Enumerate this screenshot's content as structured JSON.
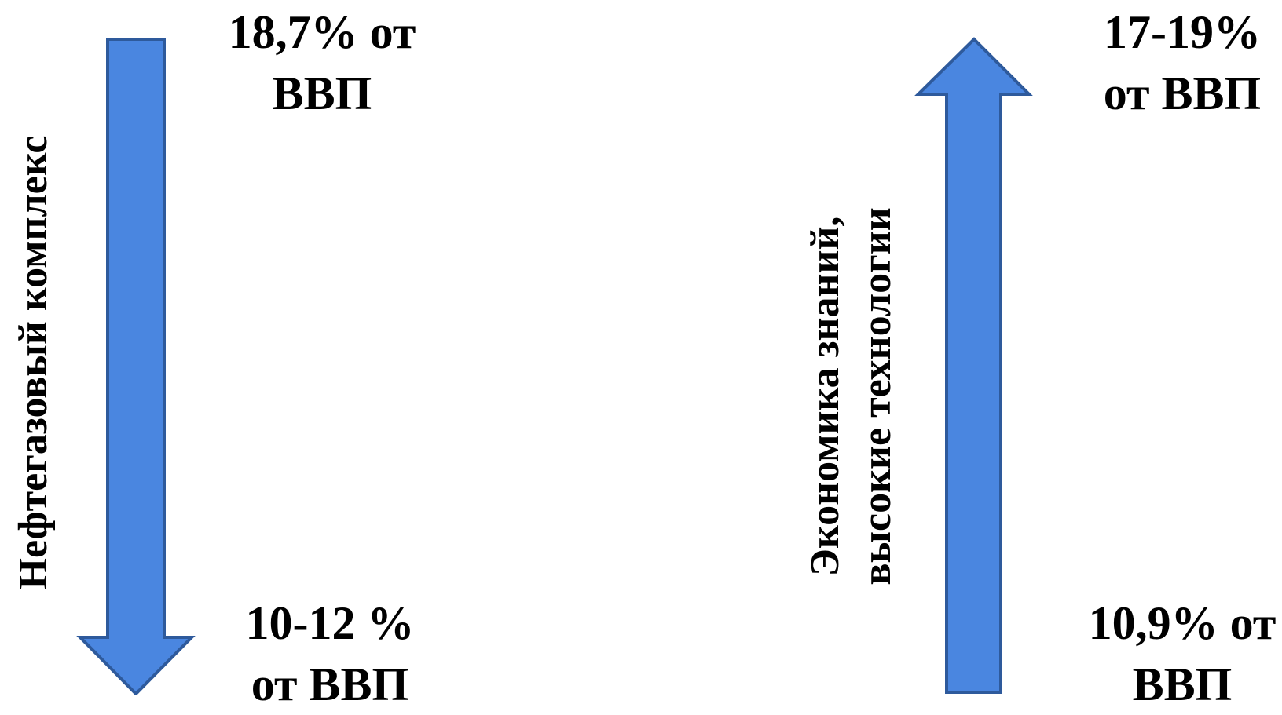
{
  "colors": {
    "arrow_fill": "#4a86e0",
    "arrow_stroke": "#2e5a9c",
    "text": "#000000"
  },
  "left": {
    "vertical_label": "Нефтегазовый комплекс",
    "top_value": {
      "line1": "18,7% от",
      "line2": "ВВП"
    },
    "bottom_value": {
      "line1": "10-12 %",
      "line2": "от ВВП"
    },
    "arrow_direction": "down"
  },
  "right": {
    "vertical_label": {
      "line1": "Экономика знаний,",
      "line2": "высокие технологии"
    },
    "top_value": {
      "line1": "17-19%",
      "line2": "от ВВП"
    },
    "bottom_value": {
      "line1": "10,9% от",
      "line2": "ВВП"
    },
    "arrow_direction": "up"
  }
}
